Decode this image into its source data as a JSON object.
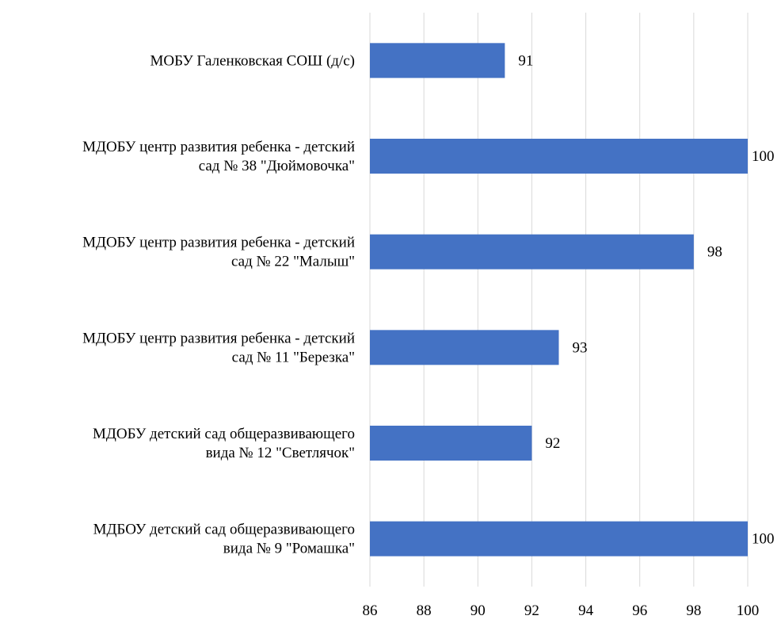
{
  "chart_data": {
    "type": "bar",
    "orientation": "horizontal",
    "categories": [
      [
        "МОБУ Галенковская СОШ (д/с)"
      ],
      [
        "МДОБУ центр развития ребенка - детский",
        "сад № 38 \"Дюймовочка\""
      ],
      [
        "МДОБУ центр развития ребенка - детский",
        "сад № 22 \"Малыш\""
      ],
      [
        "МДОБУ центр развития ребенка - детский",
        "сад № 11 \"Березка\""
      ],
      [
        "МДОБУ детский сад общеразвивающего",
        "вида № 12 \"Светлячок\""
      ],
      [
        "МДБОУ детский сад общеразвивающего",
        "вида № 9 \"Ромашка\""
      ]
    ],
    "values": [
      91,
      100,
      98,
      93,
      92,
      100
    ],
    "xlim": [
      86,
      100
    ],
    "ticks": [
      "86",
      "88",
      "90",
      "92",
      "94",
      "96",
      "98",
      "100"
    ],
    "grid": true,
    "bar_color": "#4472c4",
    "title": "",
    "xlabel": "",
    "ylabel": ""
  }
}
